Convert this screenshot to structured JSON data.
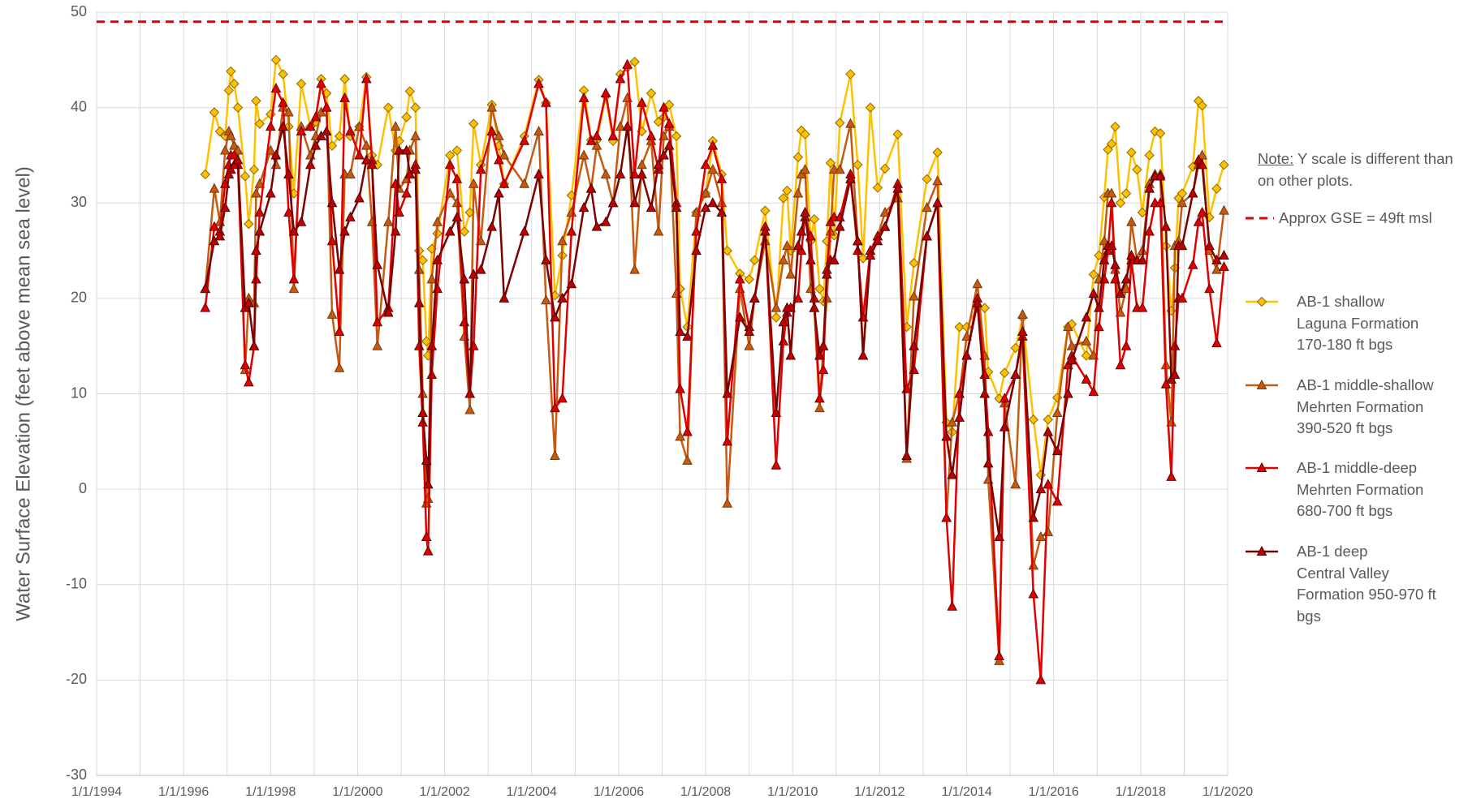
{
  "chart_data": {
    "type": "line",
    "y_label": "Water Surface Elevation (feet above mean sea level)",
    "note": {
      "prefix": "Note:",
      "text": "Y scale is different than on other plots."
    },
    "reference_lines": [
      {
        "value": 49,
        "label": "Approx GSE = 49ft msl",
        "color": "#E00000",
        "dashed": true
      }
    ],
    "xlim": [
      "1994-01-01",
      "2020-01-01"
    ],
    "xticks": [
      {
        "value": "1994-01-01",
        "label": "1/1/1994"
      },
      {
        "value": "1996-01-01",
        "label": "1/1/1996"
      },
      {
        "value": "1998-01-01",
        "label": "1/1/1998"
      },
      {
        "value": "2000-01-01",
        "label": "1/1/2000"
      },
      {
        "value": "2002-01-01",
        "label": "1/1/2002"
      },
      {
        "value": "2004-01-01",
        "label": "1/1/2004"
      },
      {
        "value": "2006-01-01",
        "label": "1/1/2006"
      },
      {
        "value": "2008-01-01",
        "label": "1/1/2008"
      },
      {
        "value": "2010-01-01",
        "label": "1/1/2010"
      },
      {
        "value": "2012-01-01",
        "label": "1/1/2012"
      },
      {
        "value": "2014-01-01",
        "label": "1/1/2014"
      },
      {
        "value": "2016-01-01",
        "label": "1/1/2016"
      },
      {
        "value": "2018-01-01",
        "label": "1/1/2018"
      },
      {
        "value": "2020-01-01",
        "label": "1/1/2020"
      }
    ],
    "xminor": [
      "1995-01-01",
      "1997-01-01",
      "1999-01-01",
      "2001-01-01",
      "2003-01-01",
      "2005-01-01",
      "2007-01-01",
      "2009-01-01",
      "2011-01-01",
      "2013-01-01",
      "2015-01-01",
      "2017-01-01",
      "2019-01-01"
    ],
    "ylim": [
      -30,
      50
    ],
    "yticks": [
      -30,
      -20,
      -10,
      0,
      10,
      20,
      30,
      40,
      50
    ],
    "grid": true,
    "x": [
      "1996-07-01",
      "1996-09-15",
      "1996-11-01",
      "1996-12-15",
      "1997-01-15",
      "1997-02-01",
      "1997-03-01",
      "1997-04-01",
      "1997-06-01",
      "1997-07-01",
      "1997-08-15",
      "1997-09-01",
      "1997-10-01",
      "1998-01-01",
      "1998-02-15",
      "1998-04-15",
      "1998-06-01",
      "1998-07-15",
      "1998-09-15",
      "1998-12-01",
      "1999-01-15",
      "1999-03-01",
      "1999-04-15",
      "1999-06-01",
      "1999-08-01",
      "1999-09-15",
      "1999-11-01",
      "2000-01-15",
      "2000-03-15",
      "2000-05-01",
      "2000-06-15",
      "2000-09-15",
      "2000-11-15",
      "2000-12-15",
      "2001-02-15",
      "2001-03-15",
      "2001-05-01",
      "2001-06-01",
      "2001-07-01",
      "2001-08-01",
      "2001-08-15",
      "2001-09-15",
      "2001-11-01",
      "2002-02-15",
      "2002-04-15",
      "2002-06-15",
      "2002-08-01",
      "2002-09-01",
      "2002-11-01",
      "2003-02-01",
      "2003-04-01",
      "2003-05-15",
      "2003-11-01",
      "2004-03-01",
      "2004-05-01",
      "2004-07-15",
      "2004-09-15",
      "2004-12-01",
      "2005-03-15",
      "2005-05-15",
      "2005-07-01",
      "2005-09-15",
      "2005-11-15",
      "2006-01-15",
      "2006-03-15",
      "2006-05-15",
      "2006-07-15",
      "2006-10-01",
      "2006-12-01",
      "2007-01-15",
      "2007-03-01",
      "2007-05-01",
      "2007-06-01",
      "2007-08-01",
      "2007-10-15",
      "2008-01-01",
      "2008-03-01",
      "2008-05-15",
      "2008-07-01",
      "2008-10-15",
      "2009-01-01",
      "2009-02-15",
      "2009-05-15",
      "2009-08-15",
      "2009-10-15",
      "2009-11-15",
      "2009-12-15",
      "2010-02-15",
      "2010-03-15",
      "2010-04-15",
      "2010-06-01",
      "2010-07-01",
      "2010-08-15",
      "2010-09-15",
      "2010-10-15",
      "2010-11-15",
      "2010-12-15",
      "2011-02-01",
      "2011-05-01",
      "2011-07-01",
      "2011-08-15",
      "2011-10-15",
      "2011-12-15",
      "2012-02-15",
      "2012-06-01",
      "2012-08-15",
      "2012-10-15",
      "2013-02-01",
      "2013-05-01",
      "2013-07-15",
      "2013-09-01",
      "2013-11-01",
      "2014-01-01",
      "2014-04-01",
      "2014-06-01",
      "2014-07-01",
      "2014-10-01",
      "2014-11-15",
      "2015-02-15",
      "2015-04-15",
      "2015-07-15",
      "2015-09-15",
      "2015-11-15",
      "2016-02-01",
      "2016-05-01",
      "2016-06-01",
      "2016-10-01",
      "2016-12-01",
      "2017-01-15",
      "2017-03-01",
      "2017-04-01",
      "2017-05-01",
      "2017-06-01",
      "2017-07-15",
      "2017-09-01",
      "2017-10-15",
      "2017-12-01",
      "2018-01-15",
      "2018-03-15",
      "2018-05-01",
      "2018-06-15",
      "2018-08-01",
      "2018-09-15",
      "2018-10-15",
      "2018-11-15",
      "2018-12-15",
      "2019-03-15",
      "2019-05-01",
      "2019-06-01",
      "2019-08-01",
      "2019-10-01",
      "2019-12-01"
    ],
    "series": [
      {
        "name": "AB-1 shallow\nLaguna Formation 170-180 ft bgs",
        "color": "#FFC000",
        "marker": "diamond",
        "marker_color": "#FFC000",
        "edge_color": "#8A6A00",
        "values": [
          33,
          39.5,
          37.5,
          37,
          41.8,
          43.8,
          42.5,
          40,
          32.8,
          27.8,
          33.5,
          40.7,
          38.3,
          39.3,
          45,
          43.5,
          38,
          31,
          42.5,
          38,
          38.5,
          43,
          41.5,
          36,
          37,
          43,
          37,
          38,
          43.2,
          35,
          34,
          40,
          35.5,
          36.5,
          39,
          41.7,
          40,
          25,
          24,
          15.5,
          14,
          25.2,
          26.8,
          35,
          35.5,
          27,
          29,
          38.3,
          34,
          40.3,
          36,
          32,
          37,
          42.9,
          40.5,
          20.3,
          24.5,
          30.8,
          41.8,
          36.6,
          36.6,
          41.2,
          36.5,
          43.5,
          44.2,
          44.8,
          37.5,
          41.5,
          38.5,
          39,
          40.3,
          37,
          21,
          17,
          29,
          31,
          36.5,
          33,
          25,
          22.6,
          22,
          24,
          29.2,
          18,
          30.5,
          31.3,
          25,
          34.8,
          37.6,
          37.2,
          26,
          28.3,
          21,
          19.7,
          26,
          34.2,
          26.6,
          38.4,
          43.5,
          34,
          24.2,
          40,
          31.6,
          33.6,
          37.2,
          17,
          23.7,
          32.5,
          35.3,
          7,
          6,
          17,
          17,
          19,
          19,
          12.3,
          9.5,
          12.2,
          14.8,
          18,
          7.3,
          1.5,
          7.3,
          9.6,
          17,
          17.3,
          14,
          22.5,
          24.5,
          30.6,
          35.6,
          36.2,
          38,
          30,
          31,
          35.3,
          33.5,
          29,
          35,
          37.5,
          37.3,
          25.5,
          18.7,
          23.2,
          30.5,
          31,
          33.8,
          40.7,
          40.2,
          28.5,
          31.5,
          34
        ]
      },
      {
        "name": "AB-1 middle-shallow\nMehrten Formation 390-520 ft bgs",
        "color": "#C55A11",
        "marker": "triangle",
        "marker_color": "#C55A11",
        "edge_color": "#7A3608",
        "values": [
          21,
          31.5,
          28,
          35.5,
          37.5,
          37,
          36,
          35.5,
          12.5,
          20,
          19.5,
          31,
          32,
          35.5,
          34,
          40,
          39.5,
          21,
          38,
          35,
          37,
          39.5,
          40,
          18.3,
          12.7,
          33,
          33,
          38,
          36,
          28,
          15,
          28,
          38,
          31.5,
          32.5,
          35.5,
          37,
          23,
          10,
          -1.5,
          -1,
          22,
          28,
          31,
          30,
          16,
          8.3,
          32,
          26,
          40,
          37,
          35,
          32,
          37.5,
          19.8,
          3.5,
          26,
          29,
          35,
          31.5,
          36,
          33,
          30,
          38,
          41,
          23,
          34,
          36.5,
          27,
          37,
          38,
          20.5,
          5.5,
          3,
          29,
          31,
          33.5,
          30,
          -1.5,
          21,
          15,
          20,
          26,
          19,
          24,
          25.5,
          22.5,
          31,
          33,
          33.5,
          21,
          19,
          8.5,
          15,
          20,
          27,
          33.5,
          33.5,
          38.3,
          26,
          14,
          25,
          26.5,
          29,
          30.5,
          3.2,
          20.2,
          29.5,
          32.3,
          -3,
          7,
          10,
          16,
          21.5,
          14,
          1,
          -18,
          9,
          0.5,
          18.3,
          -8,
          -5,
          -4.5,
          8,
          17,
          15,
          15.5,
          14,
          22,
          26,
          31,
          31,
          23,
          18.5,
          21,
          28,
          24,
          25,
          32,
          33,
          33,
          13,
          7,
          25.5,
          26,
          30,
          31,
          34,
          35,
          25,
          23,
          29.2
        ]
      },
      {
        "name": "AB-1 middle-deep\nMehrten Formation 680-700 ft bgs",
        "color": "#E00000",
        "marker": "triangle",
        "marker_color": "#E00000",
        "edge_color": "#6A0000",
        "values": [
          19,
          27.5,
          27,
          32,
          34,
          35,
          35,
          34,
          13,
          11.2,
          15,
          22,
          29,
          38,
          42,
          40.5,
          29,
          22,
          37.5,
          38,
          39,
          42.5,
          40,
          26,
          16.5,
          41,
          37.5,
          35,
          43,
          34.5,
          17.5,
          19,
          32,
          29,
          31,
          33,
          34,
          15,
          7,
          -5,
          -6.5,
          12,
          21,
          34,
          32.5,
          17.5,
          10,
          15,
          33.5,
          37.5,
          34.5,
          32,
          36.5,
          42.5,
          40.5,
          8.5,
          9.5,
          27,
          41,
          36.5,
          37,
          41.5,
          37,
          43,
          44.5,
          33,
          40.5,
          37,
          33.5,
          40,
          38.3,
          30,
          10.5,
          6,
          27,
          34,
          36,
          32.5,
          5,
          22,
          17,
          20,
          27.5,
          2.5,
          15.5,
          18.5,
          19,
          20,
          25,
          28.5,
          26.5,
          20,
          9.5,
          12.5,
          23,
          28,
          28.5,
          28.5,
          33,
          25,
          18,
          25,
          26.5,
          27.5,
          32,
          10.5,
          12.5,
          26.5,
          30,
          -3,
          -12.3,
          10,
          14,
          20,
          12,
          6,
          -17.5,
          9.5,
          12,
          16,
          -11,
          -20,
          0.5,
          -1.3,
          13,
          14,
          11.5,
          10.2,
          17,
          22,
          25,
          30,
          22,
          13,
          15,
          24,
          19,
          19,
          27,
          30,
          30,
          11,
          1.3,
          15,
          20,
          20,
          23.5,
          28,
          29,
          21,
          15.3,
          23.3
        ]
      },
      {
        "name": "AB-1 deep\nCentral Valley Formation 950-970 ft bgs",
        "color": "#7B0000",
        "marker": "triangle",
        "marker_color": "#C00000",
        "edge_color": "#4A0000",
        "values": [
          21,
          26,
          26.5,
          29.5,
          33,
          33.5,
          34,
          34.5,
          19,
          19.5,
          15,
          25,
          27,
          31,
          35,
          38,
          33,
          27,
          28,
          34,
          36,
          37,
          37.5,
          30,
          23,
          27,
          28.5,
          30.5,
          34.5,
          34,
          23.5,
          18.5,
          27,
          35.5,
          35.5,
          33,
          33.5,
          19.5,
          8,
          3,
          0.5,
          15,
          24,
          27,
          28.5,
          22,
          10,
          22.5,
          23,
          27.5,
          31,
          20,
          27,
          33,
          24,
          18,
          20,
          21.5,
          29.5,
          31.5,
          27.5,
          28,
          30,
          33,
          38,
          30,
          33,
          29.5,
          34,
          35,
          36,
          29.5,
          16.5,
          16,
          25,
          29.5,
          30,
          29,
          10,
          18,
          16.5,
          20,
          27,
          8,
          17.5,
          19,
          14,
          25.5,
          27,
          29,
          24,
          19,
          14,
          15,
          22.5,
          24,
          24,
          27.5,
          32.5,
          26,
          14,
          24.5,
          26,
          27.5,
          31.5,
          3.5,
          15,
          26.5,
          30,
          5.5,
          1.5,
          7.5,
          14,
          19.5,
          10,
          2.7,
          -5,
          6.5,
          12,
          16.5,
          -3,
          0,
          6,
          4,
          10,
          13.5,
          18,
          20.5,
          19,
          24,
          25.5,
          25.5,
          23.5,
          20.5,
          22,
          24.5,
          24,
          24,
          31.5,
          32.8,
          32.8,
          27.5,
          11.5,
          12,
          25.5,
          25.5,
          31,
          34.5,
          34,
          25.5,
          24,
          24.5
        ]
      }
    ]
  }
}
